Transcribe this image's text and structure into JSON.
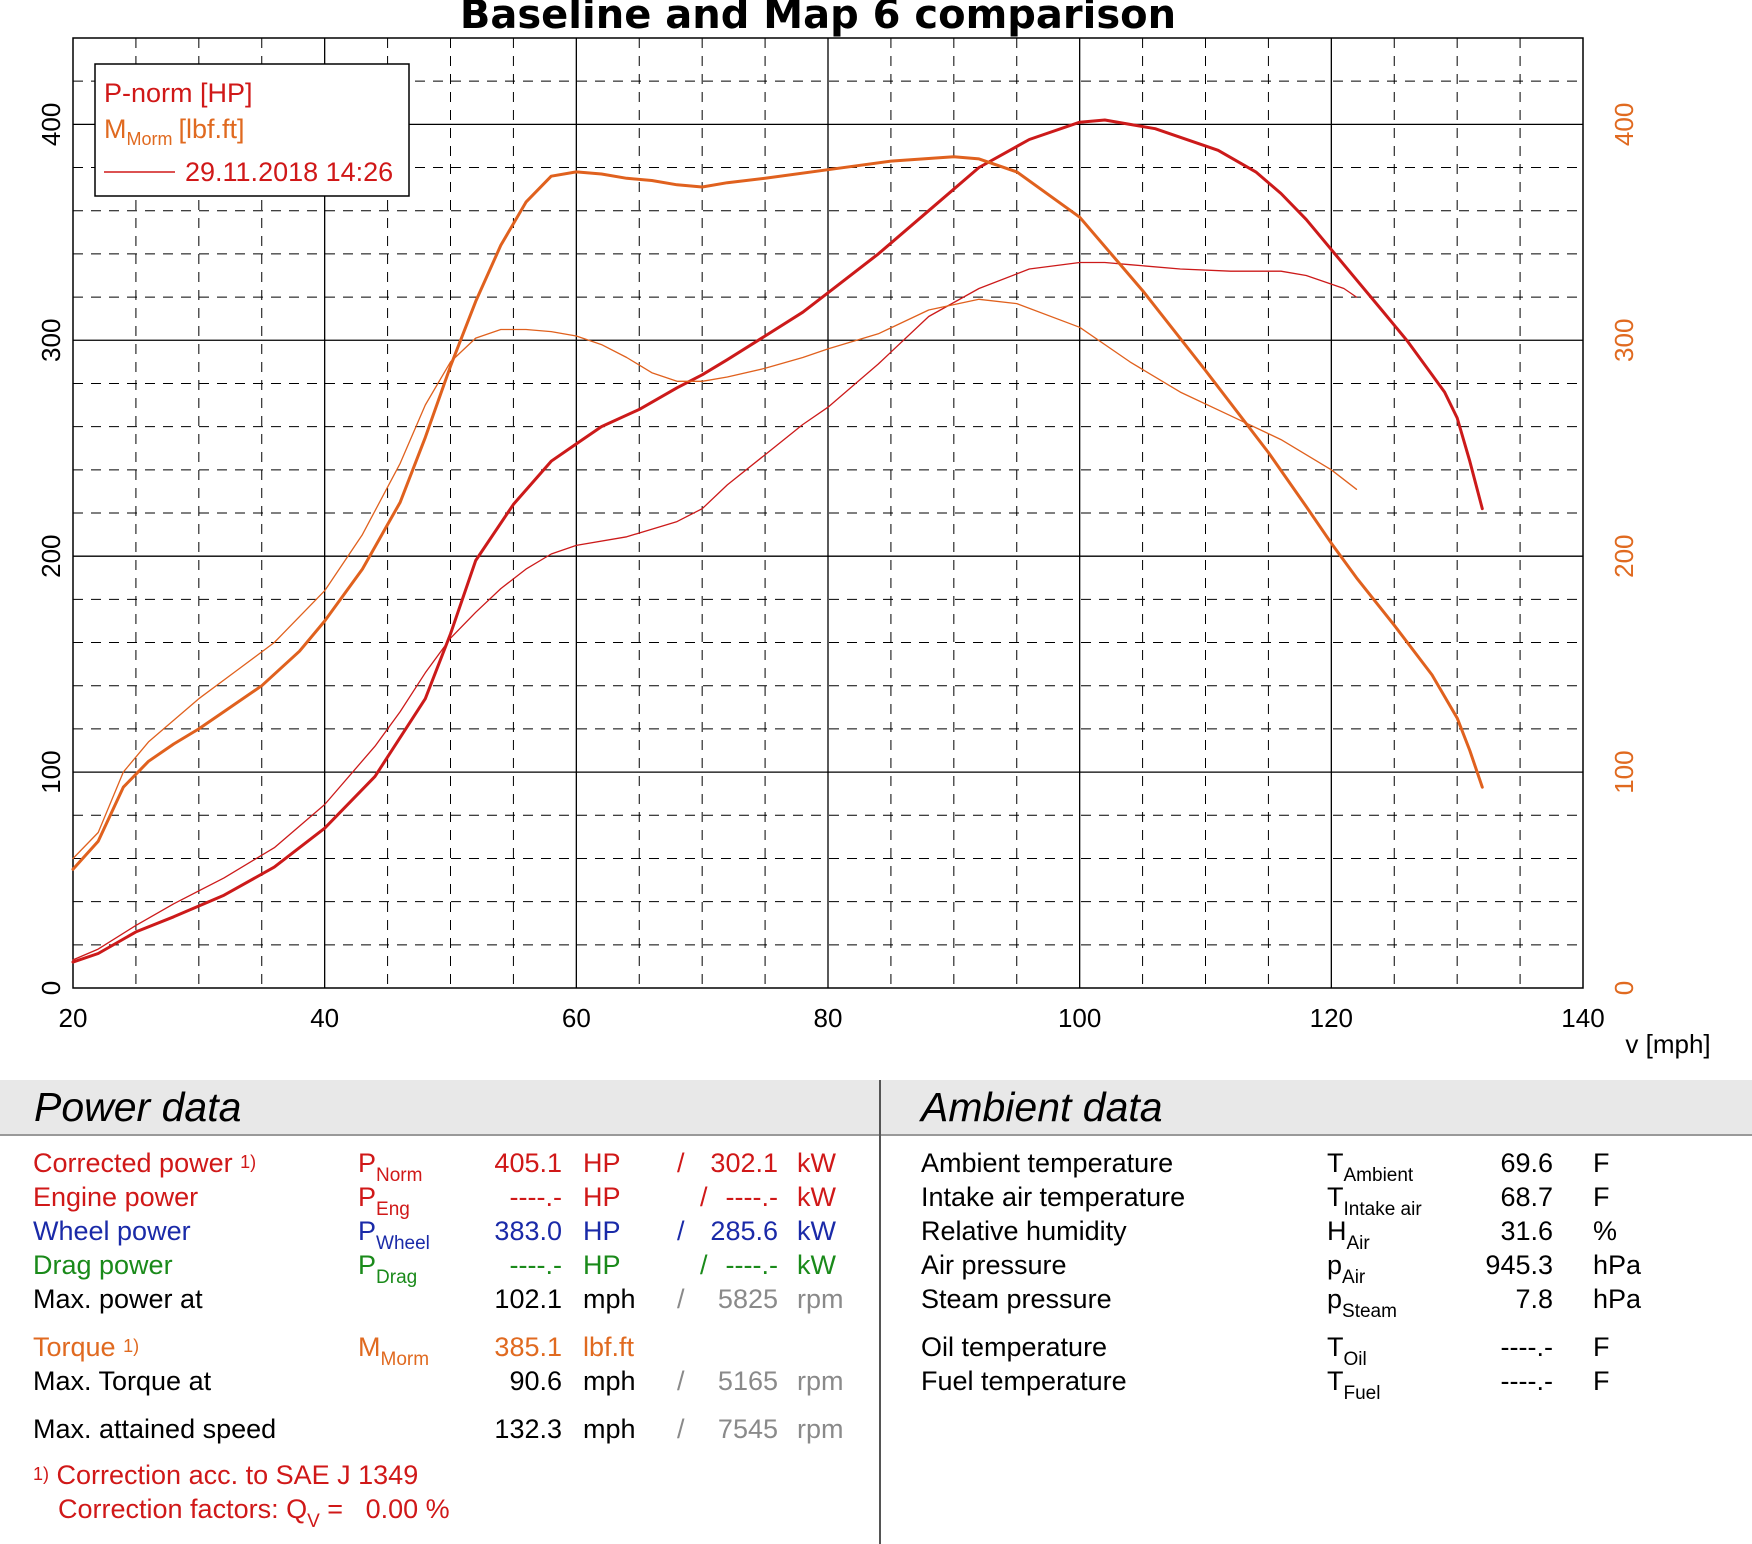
{
  "chart_data": {
    "type": "line",
    "title": "Baseline and Map 6 comparison",
    "xlabel": "v [mph]",
    "xlim": [
      20,
      140
    ],
    "x_ticks": [
      "20",
      "40",
      "60",
      "80",
      "100",
      "120",
      "140"
    ],
    "ylim_left": [
      0,
      440
    ],
    "ylim_right": [
      0,
      440
    ],
    "y_ticks_left": [
      "0",
      "100",
      "200",
      "300",
      "400"
    ],
    "y_ticks_right": [
      "0",
      "100",
      "200",
      "300",
      "400"
    ],
    "grid": true,
    "legend": {
      "placement": "top-left",
      "entries": [
        "P-norm [HP]",
        "M",
        "Morm",
        "[lbf.ft]"
      ],
      "date": "29.11.2018 14:26"
    },
    "colors": {
      "power": "#cc1a1a",
      "torque": "#e0611e",
      "legend_red": "#d01818",
      "right_axis": "#e06a20"
    },
    "series": [
      {
        "kind": "power-map6",
        "x": [
          20,
          22,
          25,
          28,
          32,
          36,
          40,
          44,
          48,
          50,
          52,
          55,
          58,
          60,
          62,
          65,
          68,
          70,
          72,
          75,
          78,
          80,
          84,
          88,
          92,
          96,
          100,
          102,
          104,
          106,
          108,
          111,
          114,
          116,
          118,
          120,
          122,
          124,
          126,
          128,
          129,
          130,
          131,
          132
        ],
        "values": [
          12,
          16,
          26,
          33,
          43,
          56,
          74,
          98,
          134,
          164,
          198,
          224,
          244,
          252,
          260,
          268,
          278,
          284,
          291,
          302,
          313,
          322,
          340,
          360,
          380,
          393,
          401,
          402,
          400,
          398,
          394,
          388,
          378,
          368,
          356,
          342,
          328,
          314,
          300,
          284,
          276,
          264,
          244,
          222
        ]
      },
      {
        "kind": "power-baseline",
        "x": [
          20,
          22,
          25,
          28,
          32,
          36,
          40,
          44,
          46,
          48,
          50,
          52,
          54,
          56,
          58,
          60,
          64,
          68,
          70,
          72,
          75,
          78,
          80,
          84,
          88,
          92,
          96,
          100,
          102,
          104,
          108,
          112,
          116,
          118,
          120,
          121,
          122
        ],
        "values": [
          13,
          18,
          29,
          39,
          51,
          65,
          85,
          112,
          128,
          146,
          162,
          174,
          185,
          194,
          201,
          205,
          209,
          216,
          222,
          233,
          247,
          261,
          269,
          289,
          311,
          324,
          333,
          336,
          336,
          335,
          333,
          332,
          332,
          330,
          326,
          324,
          320
        ]
      },
      {
        "kind": "torque-map6",
        "x": [
          20,
          22,
          24,
          26,
          28,
          30,
          32,
          35,
          38,
          40,
          43,
          46,
          48,
          50,
          52,
          54,
          56,
          58,
          60,
          62,
          64,
          66,
          68,
          70,
          72,
          75,
          80,
          85,
          90,
          92,
          95,
          100,
          105,
          110,
          115,
          118,
          120,
          122,
          125,
          128,
          130,
          131,
          132
        ],
        "values": [
          55,
          68,
          93,
          105,
          113,
          120,
          128,
          140,
          156,
          170,
          194,
          225,
          255,
          288,
          318,
          344,
          364,
          376,
          378,
          377,
          375,
          374,
          372,
          371,
          373,
          375,
          379,
          383,
          385,
          384,
          378,
          357,
          323,
          286,
          248,
          223,
          206,
          190,
          168,
          145,
          125,
          110,
          93
        ]
      },
      {
        "kind": "torque-baseline",
        "x": [
          20,
          22,
          24,
          26,
          28,
          30,
          33,
          36,
          40,
          43,
          46,
          48,
          50,
          52,
          54,
          56,
          58,
          60,
          62,
          64,
          66,
          68,
          70,
          72,
          75,
          78,
          80,
          84,
          88,
          92,
          95,
          100,
          104,
          108,
          112,
          116,
          120,
          122
        ],
        "values": [
          60,
          72,
          100,
          114,
          124,
          134,
          147,
          160,
          184,
          210,
          243,
          270,
          290,
          301,
          305,
          305,
          304,
          302,
          298,
          292,
          285,
          281,
          281,
          283,
          287,
          292,
          296,
          303,
          314,
          319,
          317,
          306,
          290,
          276,
          265,
          254,
          240,
          231
        ]
      }
    ]
  },
  "power_panel": {
    "title": "Power data",
    "rows": [
      {
        "label": "Corrected power",
        "mark": "1)",
        "sym": "P",
        "sub": "Norm",
        "v1": "405.1",
        "u1": "HP",
        "slash": "/",
        "v2": "302.1",
        "u2": "kW"
      },
      {
        "label": "Engine power",
        "sym": "P",
        "sub": "Eng",
        "v1": "----.-",
        "u1": "HP",
        "slash": "/",
        "v2": "----.-",
        "u2": "kW"
      },
      {
        "label": "Wheel power",
        "sym": "P",
        "sub": "Wheel",
        "v1": "383.0",
        "u1": "HP",
        "slash": "/",
        "v2": "285.6",
        "u2": "kW"
      },
      {
        "label": "Drag power",
        "sym": "P",
        "sub": "Drag",
        "v1": "----.-",
        "u1": "HP",
        "slash": "/",
        "v2": "----.-",
        "u2": "kW"
      },
      {
        "label": "Max. power at",
        "v1": "102.1",
        "u1": "mph",
        "slash": "/",
        "v2": "5825",
        "u2": "rpm"
      },
      {
        "label": "Torque",
        "mark": "1)",
        "sym": "M",
        "sub": "Morm",
        "v1": "385.1",
        "u1": "lbf.ft"
      },
      {
        "label": "Max. Torque at",
        "v1": "90.6",
        "u1": "mph",
        "slash": "/",
        "v2": "5165",
        "u2": "rpm"
      },
      {
        "label": "Max. attained speed",
        "v1": "132.3",
        "u1": "mph",
        "slash": "/",
        "v2": "7545",
        "u2": "rpm"
      }
    ],
    "footnote": {
      "mark": "1)",
      "line1": "Correction acc. to SAE J 1349",
      "line2_prefix": "Correction factors: Q",
      "line2_sub": "V",
      "line2_eq": "=",
      "line2_value": "0.00 %"
    }
  },
  "ambient_panel": {
    "title": "Ambient data",
    "rows": [
      {
        "label": "Ambient temperature",
        "sym": "T",
        "sub": "Ambient",
        "value": "69.6",
        "unit": "F"
      },
      {
        "label": "Intake air temperature",
        "sym": "T",
        "sub": "Intake air",
        "value": "68.7",
        "unit": "F"
      },
      {
        "label": "Relative humidity",
        "sym": "H",
        "sub": "Air",
        "value": "31.6",
        "unit": "%"
      },
      {
        "label": "Air pressure",
        "sym": "p",
        "sub": "Air",
        "value": "945.3",
        "unit": "hPa"
      },
      {
        "label": "Steam pressure",
        "sym": "p",
        "sub": "Steam",
        "value": "7.8",
        "unit": "hPa"
      },
      {
        "label": "Oil temperature",
        "sym": "T",
        "sub": "Oil",
        "value": "----.-",
        "unit": "F"
      },
      {
        "label": "Fuel temperature",
        "sym": "T",
        "sub": "Fuel",
        "value": "----.-",
        "unit": "F"
      }
    ]
  },
  "panel_colors": {
    "red": "#d01818",
    "blue": "#1a2aa8",
    "green": "#1a8a1a",
    "orange": "#e06a20",
    "black": "#000000",
    "grey": "#8a8a8a"
  }
}
